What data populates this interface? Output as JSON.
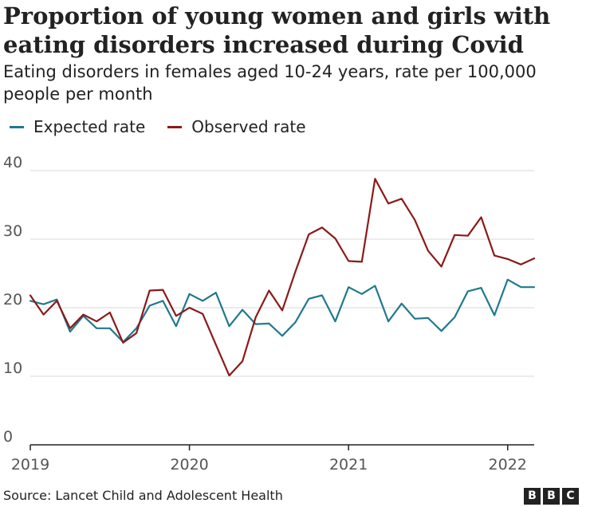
{
  "title": "Proportion of young women and girls with eating disorders increased during Covid",
  "subtitle": "Eating disorders in females aged 10-24 years, rate per 100,000 people per month",
  "source": "Source: Lancet Child and Adolescent Health",
  "logo": {
    "letters": [
      "B",
      "B",
      "C"
    ]
  },
  "colors": {
    "expected": "#1f7a8c",
    "observed": "#8b1a1a",
    "grid": "#d9d9d9",
    "axis": "#222222",
    "tick_label": "#555555"
  },
  "chart_data": {
    "type": "line",
    "title": "Proportion of young women and girls with eating disorders increased during Covid",
    "subtitle": "Eating disorders in females aged 10-24 years, rate per 100,000 people per month",
    "xlabel": "",
    "ylabel": "",
    "ylim": [
      0,
      40
    ],
    "yticks": [
      0,
      10,
      20,
      30,
      40
    ],
    "xlim": [
      "2019-01",
      "2022-03"
    ],
    "xticks": [
      {
        "date": "2019-01",
        "label": "2019"
      },
      {
        "date": "2020-01",
        "label": "2020"
      },
      {
        "date": "2021-01",
        "label": "2021"
      },
      {
        "date": "2022-01",
        "label": "2022"
      }
    ],
    "grid": true,
    "legend_position": "top-left",
    "x": [
      "2019-01",
      "2019-02",
      "2019-03",
      "2019-04",
      "2019-05",
      "2019-06",
      "2019-07",
      "2019-08",
      "2019-09",
      "2019-10",
      "2019-11",
      "2019-12",
      "2020-01",
      "2020-02",
      "2020-03",
      "2020-04",
      "2020-05",
      "2020-06",
      "2020-07",
      "2020-08",
      "2020-09",
      "2020-10",
      "2020-11",
      "2020-12",
      "2021-01",
      "2021-02",
      "2021-03",
      "2021-04",
      "2021-05",
      "2021-06",
      "2021-07",
      "2021-08",
      "2021-09",
      "2021-10",
      "2021-11",
      "2021-12",
      "2022-01",
      "2022-02",
      "2022-03"
    ],
    "series": [
      {
        "name": "Expected rate",
        "color": "#1f7a8c",
        "values": [
          21.0,
          20.5,
          21.2,
          16.5,
          18.8,
          17.0,
          17.0,
          15.0,
          17.0,
          20.3,
          21.0,
          17.3,
          22.0,
          21.0,
          22.2,
          17.3,
          19.7,
          17.6,
          17.7,
          15.9,
          17.9,
          21.3,
          21.8,
          18.0,
          23.0,
          22.0,
          23.2,
          18.0,
          20.6,
          18.4,
          18.5,
          16.6,
          18.6,
          22.4,
          22.9,
          18.9,
          24.1,
          23.0,
          23.0
        ]
      },
      {
        "name": "Observed rate",
        "color": "#8b1a1a",
        "values": [
          21.8,
          19.0,
          21.0,
          17.0,
          19.0,
          18.0,
          19.3,
          14.9,
          16.3,
          22.5,
          22.6,
          18.8,
          20.0,
          19.1,
          14.6,
          10.1,
          12.2,
          18.6,
          22.5,
          19.6,
          25.3,
          30.7,
          31.7,
          30.1,
          26.8,
          26.7,
          38.8,
          35.2,
          35.9,
          32.8,
          28.3,
          26.0,
          30.6,
          30.5,
          33.2,
          27.6,
          27.1,
          26.3,
          27.2
        ]
      }
    ]
  }
}
